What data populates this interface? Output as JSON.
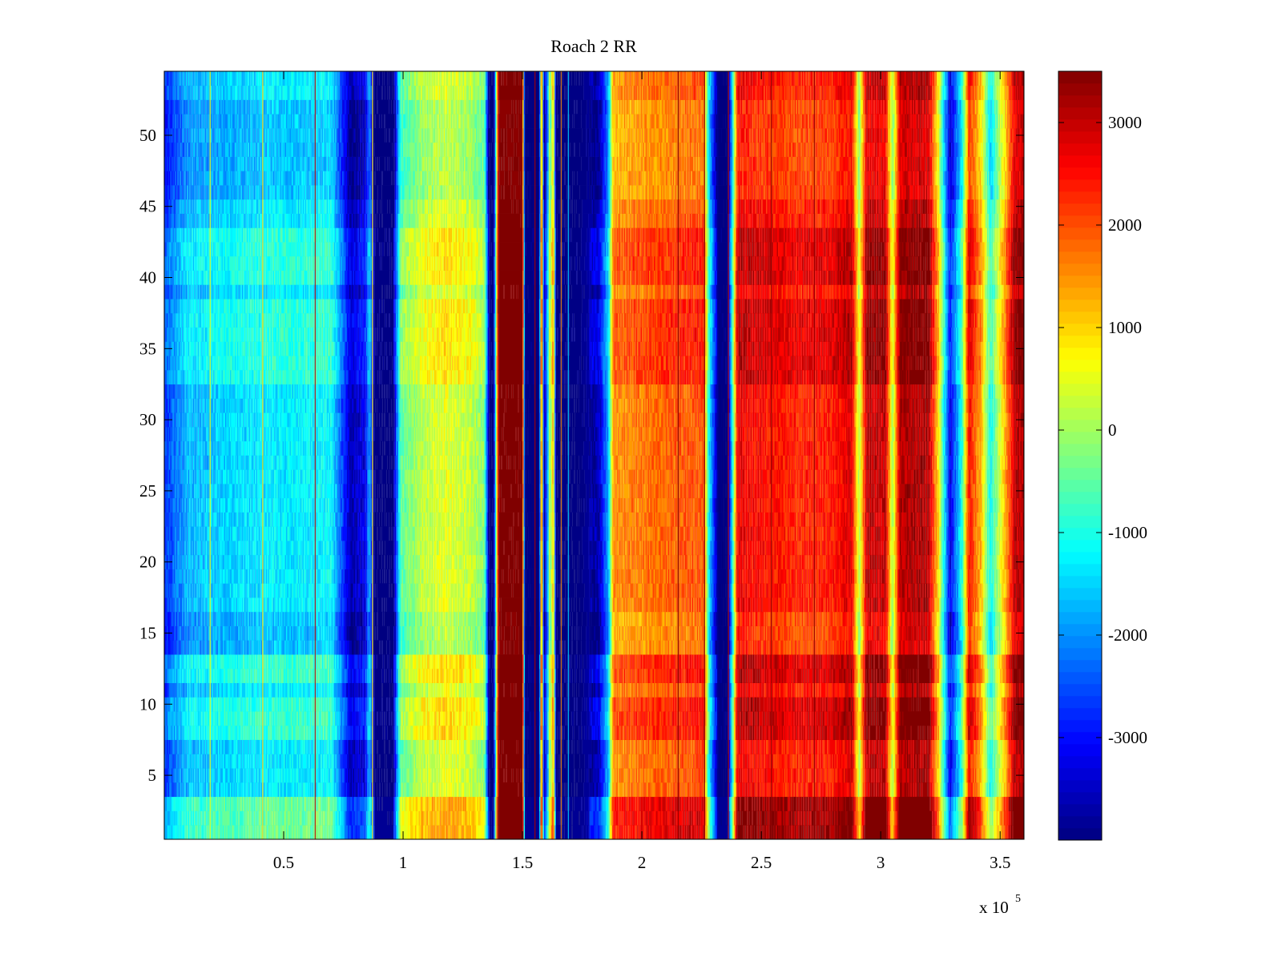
{
  "chart_data": {
    "type": "heatmap",
    "title": "Roach 2 RR",
    "xlabel": "",
    "ylabel": "",
    "x_multiplier_label": "x 10",
    "x_multiplier_exponent": "5",
    "xlim": [
      0,
      360000
    ],
    "ylim": [
      0.5,
      54.5
    ],
    "rows": 54,
    "columns": 720,
    "x_ticks": [
      {
        "value": 50000,
        "label": "0.5"
      },
      {
        "value": 100000,
        "label": "1"
      },
      {
        "value": 150000,
        "label": "1.5"
      },
      {
        "value": 200000,
        "label": "2"
      },
      {
        "value": 250000,
        "label": "2.5"
      },
      {
        "value": 300000,
        "label": "3"
      },
      {
        "value": 350000,
        "label": "3.5"
      }
    ],
    "y_ticks": [
      {
        "value": 5,
        "label": "5"
      },
      {
        "value": 10,
        "label": "10"
      },
      {
        "value": 15,
        "label": "15"
      },
      {
        "value": 20,
        "label": "20"
      },
      {
        "value": 25,
        "label": "25"
      },
      {
        "value": 30,
        "label": "30"
      },
      {
        "value": 35,
        "label": "35"
      },
      {
        "value": 40,
        "label": "40"
      },
      {
        "value": 45,
        "label": "45"
      },
      {
        "value": 50,
        "label": "50"
      }
    ],
    "colorbar": {
      "clim": [
        -4000,
        3500
      ],
      "colormap": "jet",
      "ticks": [
        {
          "value": 3000,
          "label": "3000"
        },
        {
          "value": 2000,
          "label": "2000"
        },
        {
          "value": 1000,
          "label": "1000"
        },
        {
          "value": 0,
          "label": "0"
        },
        {
          "value": -1000,
          "label": "-1000"
        },
        {
          "value": -2000,
          "label": "-2000"
        },
        {
          "value": -3000,
          "label": "-3000"
        }
      ]
    },
    "column_profile": [
      {
        "x": 0,
        "value": -2700
      },
      {
        "x": 4000,
        "value": -2300
      },
      {
        "x": 10000,
        "value": -1700
      },
      {
        "x": 25000,
        "value": -1500
      },
      {
        "x": 45000,
        "value": -1300
      },
      {
        "x": 60000,
        "value": -1300
      },
      {
        "x": 70000,
        "value": -1200
      },
      {
        "x": 74000,
        "value": -2400
      },
      {
        "x": 78000,
        "value": -3600
      },
      {
        "x": 84000,
        "value": -3300
      },
      {
        "x": 86000,
        "value": -1800
      },
      {
        "x": 88000,
        "value": -4000
      },
      {
        "x": 96000,
        "value": -4000
      },
      {
        "x": 99000,
        "value": -500
      },
      {
        "x": 108000,
        "value": 200
      },
      {
        "x": 118000,
        "value": 500
      },
      {
        "x": 128000,
        "value": 250
      },
      {
        "x": 134000,
        "value": -200
      },
      {
        "x": 136000,
        "value": -4000
      },
      {
        "x": 138000,
        "value": -4000
      },
      {
        "x": 140000,
        "value": 3500
      },
      {
        "x": 150000,
        "value": 3500
      },
      {
        "x": 151000,
        "value": -4000
      },
      {
        "x": 157000,
        "value": -4000
      },
      {
        "x": 158000,
        "value": 2800
      },
      {
        "x": 159000,
        "value": -4000
      },
      {
        "x": 163000,
        "value": 1500
      },
      {
        "x": 164000,
        "value": -4000
      },
      {
        "x": 170000,
        "value": -4000
      },
      {
        "x": 174000,
        "value": -4000
      },
      {
        "x": 182000,
        "value": -3600
      },
      {
        "x": 186000,
        "value": -1800
      },
      {
        "x": 188000,
        "value": 1500
      },
      {
        "x": 200000,
        "value": 1700
      },
      {
        "x": 215000,
        "value": 1900
      },
      {
        "x": 226000,
        "value": 2000
      },
      {
        "x": 228000,
        "value": -1200
      },
      {
        "x": 232000,
        "value": -4000
      },
      {
        "x": 236000,
        "value": -4000
      },
      {
        "x": 238000,
        "value": -1000
      },
      {
        "x": 240000,
        "value": 2700
      },
      {
        "x": 250000,
        "value": 2500
      },
      {
        "x": 265000,
        "value": 2300
      },
      {
        "x": 280000,
        "value": 2400
      },
      {
        "x": 288000,
        "value": 2800
      },
      {
        "x": 291000,
        "value": 0
      },
      {
        "x": 294000,
        "value": 3000
      },
      {
        "x": 302000,
        "value": 3000
      },
      {
        "x": 305000,
        "value": 0
      },
      {
        "x": 308000,
        "value": 3100
      },
      {
        "x": 320000,
        "value": 3200
      },
      {
        "x": 324000,
        "value": 1000
      },
      {
        "x": 329000,
        "value": -3300
      },
      {
        "x": 334000,
        "value": -1000
      },
      {
        "x": 337000,
        "value": 2500
      },
      {
        "x": 342000,
        "value": 1200
      },
      {
        "x": 346000,
        "value": -1200
      },
      {
        "x": 352000,
        "value": 1200
      },
      {
        "x": 356000,
        "value": 3000
      },
      {
        "x": 360000,
        "value": 3200
      }
    ],
    "narrow_lines": [
      {
        "x": 19000,
        "value": 600
      },
      {
        "x": 41000,
        "value": 1000
      },
      {
        "x": 63000,
        "value": 3000
      },
      {
        "x": 87000,
        "value": 800
      },
      {
        "x": 155000,
        "value": 3200
      },
      {
        "x": 161000,
        "value": 500
      },
      {
        "x": 166000,
        "value": 1500
      },
      {
        "x": 169000,
        "value": -1500
      },
      {
        "x": 215000,
        "value": 3500
      },
      {
        "x": 226000,
        "value": 3500
      },
      {
        "x": 236000,
        "value": 3200
      },
      {
        "x": 254000,
        "value": 3400
      },
      {
        "x": 272000,
        "value": 3400
      }
    ],
    "row_bands": [
      {
        "from": 1,
        "to": 3,
        "delta": 900
      },
      {
        "from": 8,
        "to": 10,
        "delta": 500
      },
      {
        "from": 12,
        "to": 13,
        "delta": 500
      },
      {
        "from": 14,
        "to": 16,
        "delta": -300
      },
      {
        "from": 33,
        "to": 38,
        "delta": 400
      },
      {
        "from": 40,
        "to": 43,
        "delta": 400
      },
      {
        "from": 46,
        "to": 52,
        "delta": -300
      }
    ]
  }
}
